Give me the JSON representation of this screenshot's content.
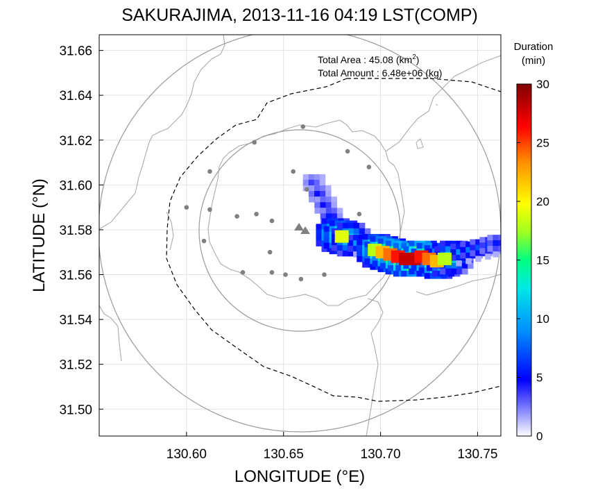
{
  "chart_data": {
    "type": "heatmap",
    "title": "SAKURAJIMA, 2013-11-16 04:19 LST(COMP)",
    "xlabel": "LONGITUDE (°E)",
    "ylabel": "LATITUDE (°N)",
    "xlim": [
      130.555,
      130.762
    ],
    "ylim": [
      31.488,
      31.667
    ],
    "x_ticks": [
      "130.60",
      "130.65",
      "130.70",
      "130.75"
    ],
    "y_ticks": [
      "31.66",
      "31.64",
      "31.62",
      "31.60",
      "31.58",
      "31.56",
      "31.54",
      "31.52",
      "31.50"
    ],
    "grid": true,
    "annotations": {
      "area_label": "Total Area   : 45.08 (km",
      "area_sup": "2",
      "area_close": ")",
      "amount_label": "Total Amount : 6.48e+06 (kg)"
    },
    "colorbar": {
      "title_line1": "Duration",
      "title_line2": "(min)",
      "ticks": [
        "0",
        "5",
        "10",
        "15",
        "20",
        "25",
        "30"
      ],
      "range": [
        0,
        30
      ]
    },
    "volcano": {
      "name": "vent",
      "lon": 130.659,
      "lat": 31.58
    },
    "range_rings_km": [
      10,
      20
    ],
    "stations": [
      [
        130.66,
        31.626
      ],
      [
        130.635,
        31.619
      ],
      [
        130.683,
        31.615
      ],
      [
        130.694,
        31.608
      ],
      [
        130.612,
        31.606
      ],
      [
        130.655,
        31.606
      ],
      [
        130.662,
        31.598
      ],
      [
        130.6,
        31.59
      ],
      [
        130.612,
        31.589
      ],
      [
        130.636,
        31.587
      ],
      [
        130.689,
        31.587
      ],
      [
        130.626,
        31.586
      ],
      [
        130.644,
        31.584
      ],
      [
        130.609,
        31.575
      ],
      [
        130.643,
        31.57
      ],
      [
        130.629,
        31.561
      ],
      [
        130.644,
        31.561
      ],
      [
        130.651,
        31.56
      ],
      [
        130.659,
        31.558
      ],
      [
        130.671,
        31.56
      ]
    ],
    "plume_points": [
      [
        130.665,
        31.601,
        4
      ],
      [
        130.668,
        31.596,
        5
      ],
      [
        130.671,
        31.591,
        5
      ],
      [
        130.674,
        31.586,
        6
      ],
      [
        130.676,
        31.578,
        16
      ],
      [
        130.68,
        31.577,
        19
      ],
      [
        130.684,
        31.576,
        14
      ],
      [
        130.688,
        31.574,
        10
      ],
      [
        130.693,
        31.572,
        12
      ],
      [
        130.697,
        31.571,
        18
      ],
      [
        130.701,
        31.57,
        22
      ],
      [
        130.705,
        31.569,
        24
      ],
      [
        130.709,
        31.568,
        26
      ],
      [
        130.713,
        31.567,
        28
      ],
      [
        130.717,
        31.567,
        28
      ],
      [
        130.721,
        31.568,
        26
      ],
      [
        130.725,
        31.567,
        24
      ],
      [
        130.729,
        31.566,
        22
      ],
      [
        130.733,
        31.567,
        18
      ],
      [
        130.737,
        31.568,
        14
      ],
      [
        130.741,
        31.57,
        10
      ],
      [
        130.746,
        31.571,
        9
      ],
      [
        130.751,
        31.572,
        8
      ],
      [
        130.756,
        31.573,
        7
      ],
      [
        130.76,
        31.574,
        6
      ]
    ]
  }
}
